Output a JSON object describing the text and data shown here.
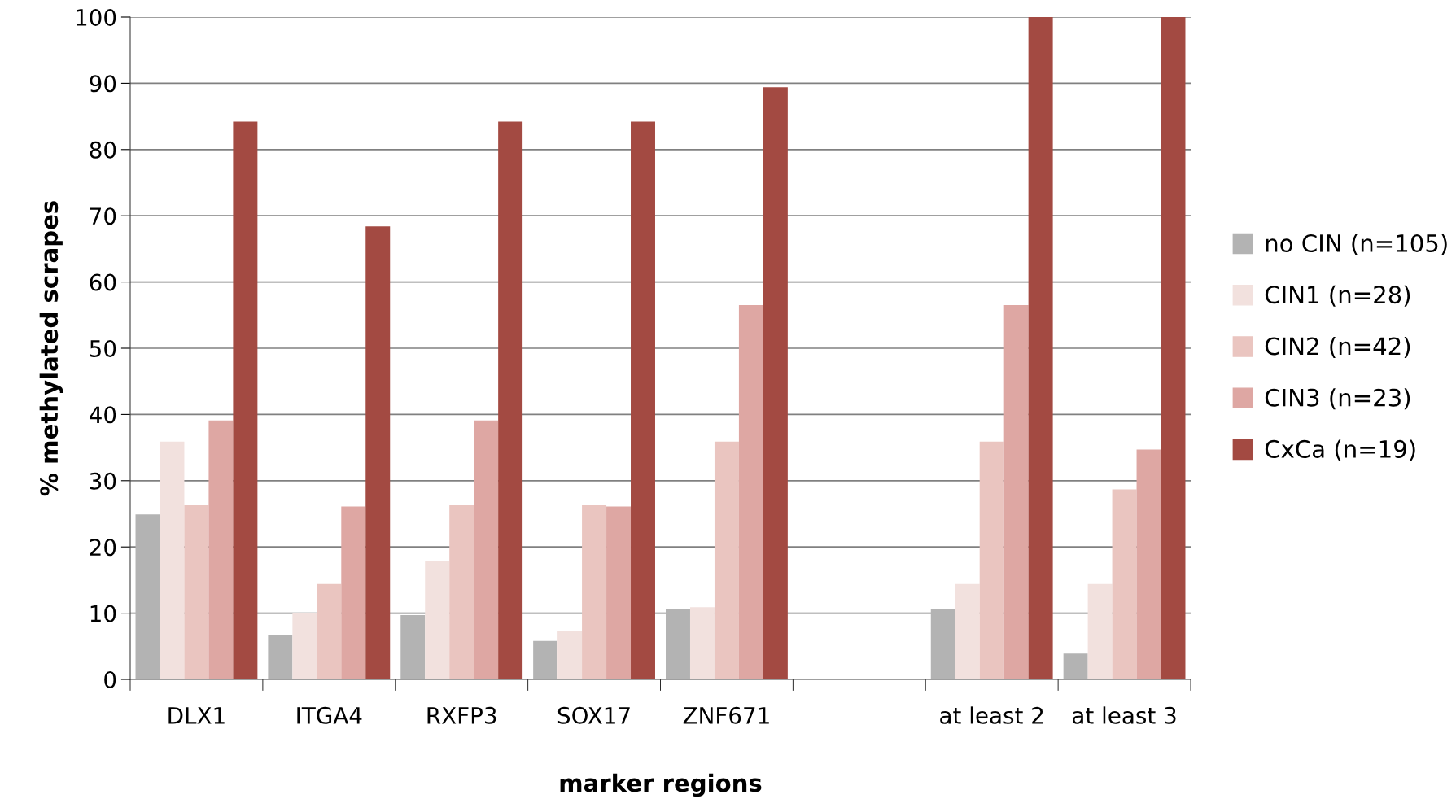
{
  "chart_data": {
    "type": "bar",
    "xlabel": "marker regions",
    "ylabel": "% methylated scrapes",
    "categories": [
      "DLX1",
      "ITGA4",
      "RXFP3",
      "SOX17",
      "ZNF671",
      null,
      "at least 2",
      "at least 3"
    ],
    "series": [
      {
        "name": "no CIN (n=105)",
        "color": "#b3b3b3",
        "values": [
          24.9,
          6.7,
          9.7,
          5.8,
          10.6,
          null,
          10.6,
          3.9
        ]
      },
      {
        "name": "CIN1 (n=28)",
        "color": "#f2e1de",
        "values": [
          35.9,
          10.0,
          17.9,
          7.3,
          10.9,
          null,
          14.4,
          14.4
        ]
      },
      {
        "name": "CIN2 (n=42)",
        "color": "#eac5c0",
        "values": [
          26.3,
          14.4,
          26.3,
          26.3,
          35.9,
          null,
          35.9,
          28.7
        ]
      },
      {
        "name": "CIN3 (n=23)",
        "color": "#dea7a3",
        "values": [
          39.1,
          26.1,
          39.1,
          26.1,
          56.5,
          null,
          56.5,
          34.7
        ]
      },
      {
        "name": "CxCa (n=19)",
        "color": "#a34a42",
        "values": [
          84.2,
          68.4,
          84.2,
          84.2,
          89.4,
          null,
          100,
          100
        ]
      }
    ],
    "ylim": [
      0,
      100
    ],
    "yticks": [
      0,
      10,
      20,
      30,
      40,
      50,
      60,
      70,
      80,
      90,
      100
    ],
    "grid": "y",
    "legend": "right"
  }
}
